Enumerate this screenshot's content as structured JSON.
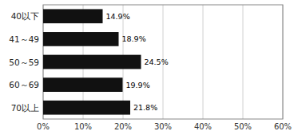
{
  "chart_data": {
    "type": "bar",
    "orientation": "horizontal",
    "categories": [
      "40以下",
      "41～49",
      "50～59",
      "60～69",
      "70以上"
    ],
    "values": [
      14.9,
      18.9,
      24.5,
      19.9,
      21.8
    ],
    "value_labels": [
      "14.9%",
      "18.9%",
      "24.5%",
      "19.9%",
      "21.8%"
    ],
    "data_labels": true,
    "color": "#111111",
    "xlim": [
      0,
      60
    ],
    "xticks": [
      {
        "value": 0,
        "label": "0%"
      },
      {
        "value": 10,
        "label": "10%"
      },
      {
        "value": 20,
        "label": "20%"
      },
      {
        "value": 30,
        "label": "30%"
      },
      {
        "value": 40,
        "label": "40%"
      },
      {
        "value": 50,
        "label": "50%"
      },
      {
        "value": 60,
        "label": "60%"
      }
    ],
    "grid": true
  }
}
